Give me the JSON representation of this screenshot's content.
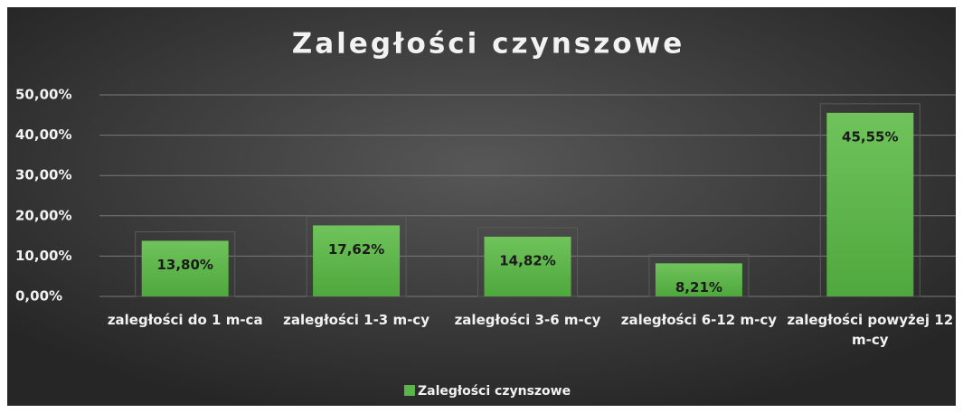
{
  "chart_data": {
    "type": "bar",
    "title": "Zaległości czynszowe",
    "categories": [
      "zaległości do 1 m-ca",
      "zaległości 1-3 m-cy",
      "zaległości 3-6 m-cy",
      "zaległości 6-12 m-cy",
      "zaległości powyżej 12 m-cy"
    ],
    "series": [
      {
        "name": "Zaległości czynszowe",
        "color": "#5cb54a",
        "values": [
          13.8,
          17.62,
          14.82,
          8.21,
          45.55
        ],
        "value_labels": [
          "13,80%",
          "17,62%",
          "14,82%",
          "8,21%",
          "45,55%"
        ]
      }
    ],
    "ylim": [
      0,
      50
    ],
    "yticks": [
      {
        "value": 0,
        "label": "0,00%"
      },
      {
        "value": 10,
        "label": "10,00%"
      },
      {
        "value": 20,
        "label": "20,00%"
      },
      {
        "value": 30,
        "label": "30,00%"
      },
      {
        "value": 40,
        "label": "40,00%"
      },
      {
        "value": 50,
        "label": "50,00%"
      }
    ],
    "grid": true,
    "legend": "bottom"
  }
}
